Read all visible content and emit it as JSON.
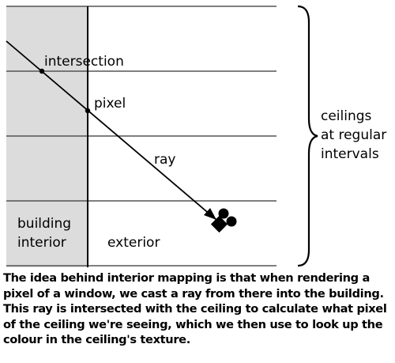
{
  "labels": {
    "intersection": "intersection",
    "pixel": "pixel",
    "ray": "ray",
    "building_line1": "building",
    "building_line2": "interior",
    "exterior": "exterior",
    "ceilings_line1": "ceilings",
    "ceilings_line2": "at regular",
    "ceilings_line3": "intervals"
  },
  "caption": "The idea behind interior mapping is that when rendering a pixel of a window, we cast a ray from there into the building. This ray is intersected with the ceiling to calculate what pixel of the ceiling we're seeing, which we then use to look up the colour in the ceiling's texture.",
  "colors": {
    "interior_fill": "#dcdcdc",
    "lines": "#555555",
    "wall": "#000000",
    "text": "#000000"
  },
  "icons": {
    "camera": "camera-icon"
  }
}
